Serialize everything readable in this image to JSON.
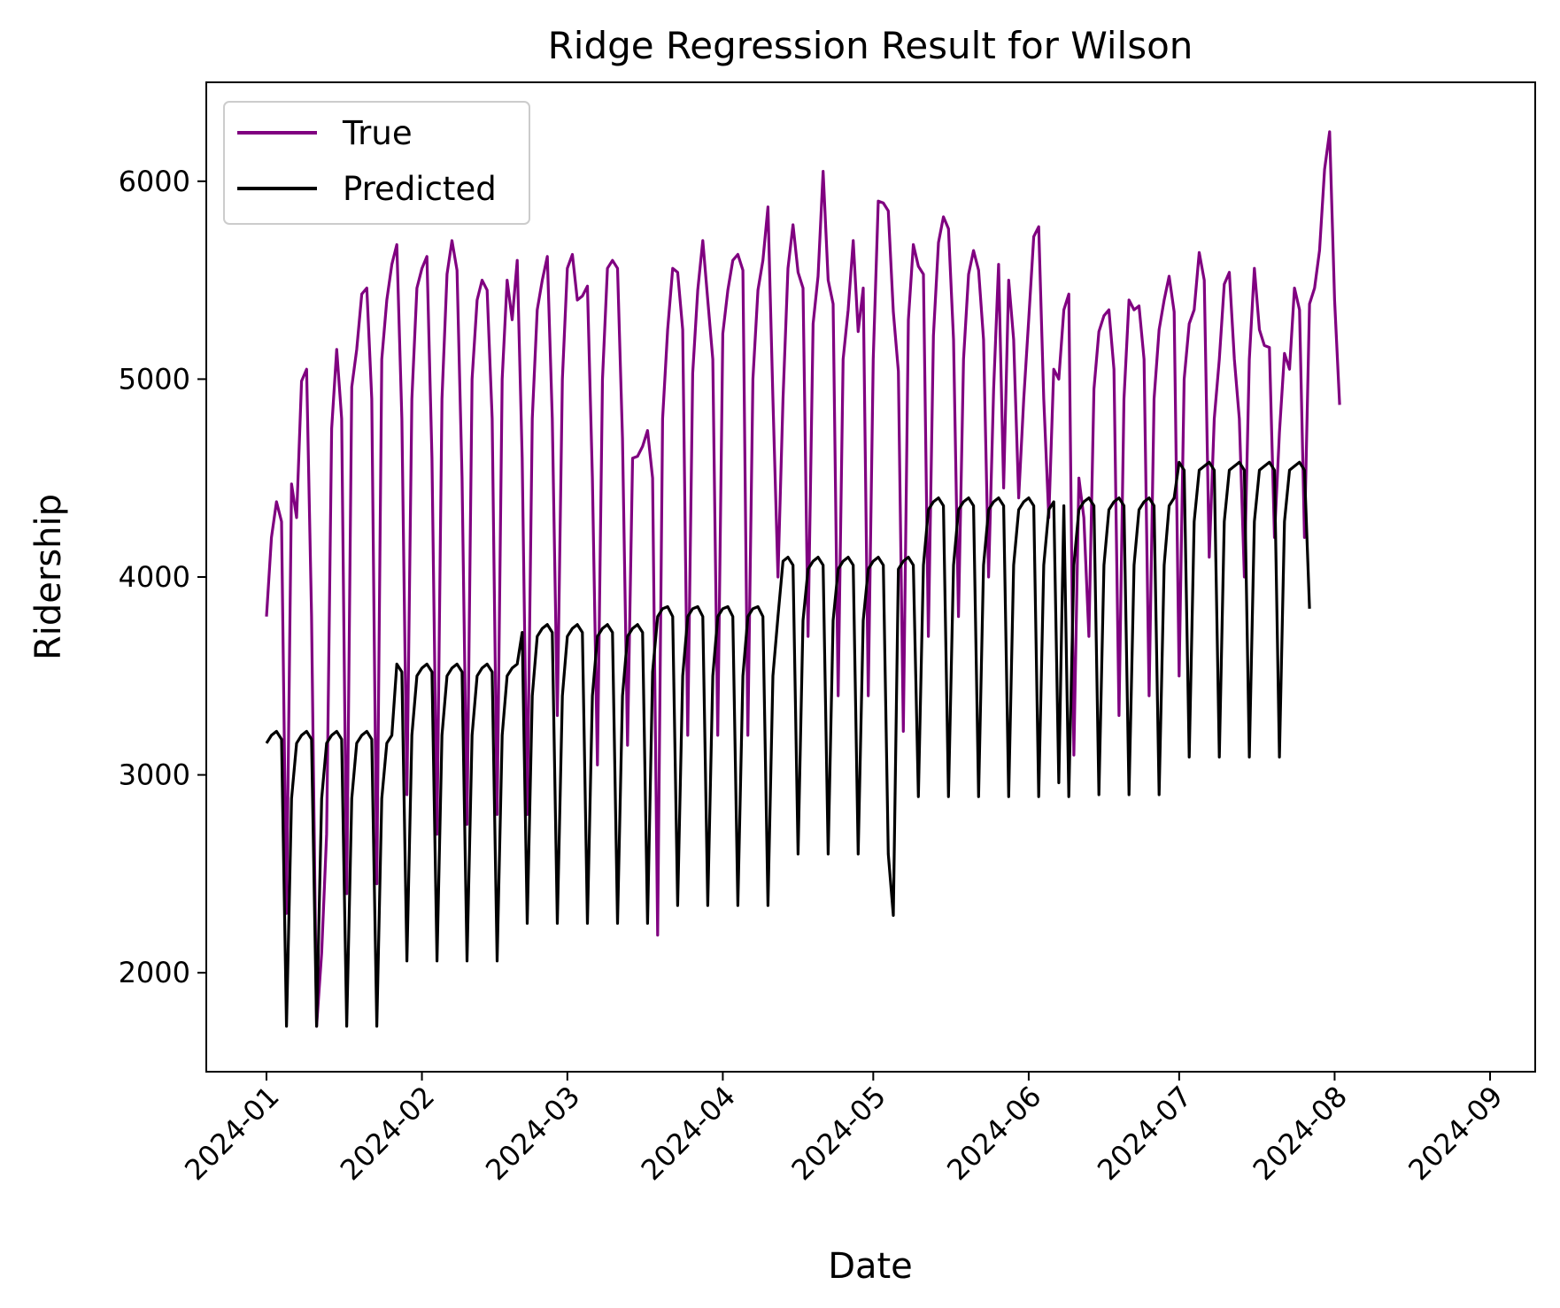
{
  "chart_data": {
    "type": "line",
    "title": "Ridge Regression Result for Wilson",
    "xlabel": "Date",
    "ylabel": "Ridership",
    "x_start": "2024-01-01",
    "x_end": "2024-08-31",
    "xlim": [
      "2023-12-20",
      "2024-09-10"
    ],
    "ylim": [
      1500,
      6500
    ],
    "yticks": [
      2000,
      3000,
      4000,
      5000,
      6000
    ],
    "xticks": [
      {
        "date": "2024-01-01",
        "label": "2024-01"
      },
      {
        "date": "2024-02-01",
        "label": "2024-02"
      },
      {
        "date": "2024-03-01",
        "label": "2024-03"
      },
      {
        "date": "2024-04-01",
        "label": "2024-04"
      },
      {
        "date": "2024-05-01",
        "label": "2024-05"
      },
      {
        "date": "2024-06-01",
        "label": "2024-06"
      },
      {
        "date": "2024-07-01",
        "label": "2024-07"
      },
      {
        "date": "2024-08-01",
        "label": "2024-08"
      },
      {
        "date": "2024-09-01",
        "label": "2024-09"
      }
    ],
    "grid": false,
    "legend_position": "top-left",
    "series": [
      {
        "name": "True",
        "color": "#800080",
        "values": [
          3800,
          4200,
          4380,
          4280,
          2300,
          4470,
          4300,
          4990,
          5050,
          3800,
          1730,
          2100,
          2700,
          4750,
          5150,
          4800,
          2400,
          4960,
          5150,
          5430,
          5460,
          4900,
          2450,
          5100,
          5400,
          5580,
          5680,
          4800,
          2900,
          4900,
          5460,
          5560,
          5620,
          4600,
          2700,
          4900,
          5530,
          5700,
          5550,
          4500,
          2750,
          5000,
          5400,
          5500,
          5450,
          4800,
          2800,
          5000,
          5500,
          5300,
          5600,
          4600,
          2800,
          4800,
          5350,
          5500,
          5620,
          4800,
          3300,
          5000,
          5560,
          5630,
          5400,
          5420,
          5470,
          4500,
          3050,
          5000,
          5560,
          5600,
          5560,
          4700,
          3150,
          4600,
          4610,
          4660,
          4740,
          4500,
          2190,
          4800,
          5250,
          5560,
          5540,
          5250,
          3200,
          5030,
          5450,
          5700,
          5400,
          5100,
          3200,
          5230,
          5450,
          5600,
          5630,
          5550,
          3200,
          5000,
          5450,
          5600,
          5870,
          4900,
          4000,
          4900,
          5560,
          5780,
          5540,
          5460,
          3700,
          5280,
          5520,
          6050,
          5500,
          5380,
          3400,
          5100,
          5350,
          5700,
          5240,
          5460,
          3400,
          5100,
          5900,
          5890,
          5850,
          5340,
          5040,
          3220,
          5300,
          5680,
          5570,
          5530,
          3700,
          5220,
          5690,
          5820,
          5760,
          5200,
          3800,
          5100,
          5530,
          5650,
          5550,
          5200,
          4000,
          4950,
          5580,
          4450,
          5500,
          5200,
          4400,
          4900,
          5300,
          5720,
          5770,
          4900,
          4300,
          5050,
          5000,
          5350,
          5430,
          3100,
          4500,
          4300,
          3700,
          4950,
          5240,
          5320,
          5350,
          5050,
          3300,
          4900,
          5400,
          5350,
          5370,
          5100,
          3400,
          4900,
          5250,
          5400,
          5520,
          5340,
          3500,
          5000,
          5280,
          5350,
          5640,
          5500,
          4100,
          4800,
          5100,
          5480,
          5540,
          5100,
          4800,
          4000,
          5100,
          5560,
          5250,
          5170,
          5160,
          4200,
          4730,
          5130,
          5050,
          5460,
          5350,
          4200,
          5380,
          5460,
          5650,
          6060,
          6250,
          5400,
          4870
        ]
      },
      {
        "name": "Predicted",
        "color": "#000000",
        "values": [
          3160,
          3200,
          3220,
          3180,
          1730,
          2880,
          3160,
          3200,
          3220,
          3180,
          1730,
          2880,
          3160,
          3200,
          3220,
          3180,
          1730,
          2880,
          3160,
          3200,
          3220,
          3180,
          1730,
          2880,
          3160,
          3200,
          3560,
          3520,
          2060,
          3200,
          3500,
          3540,
          3560,
          3520,
          2060,
          3200,
          3500,
          3540,
          3560,
          3520,
          2060,
          3200,
          3500,
          3540,
          3560,
          3520,
          2060,
          3200,
          3500,
          3540,
          3560,
          3720,
          2250,
          3400,
          3700,
          3740,
          3760,
          3720,
          2250,
          3400,
          3700,
          3740,
          3760,
          3720,
          2250,
          3400,
          3700,
          3740,
          3760,
          3720,
          2250,
          3400,
          3700,
          3740,
          3760,
          3720,
          2250,
          3520,
          3800,
          3840,
          3850,
          3800,
          2340,
          3500,
          3800,
          3840,
          3850,
          3800,
          2340,
          3500,
          3800,
          3840,
          3850,
          3800,
          2340,
          3500,
          3800,
          3840,
          3850,
          3800,
          2340,
          3500,
          3800,
          4080,
          4100,
          4060,
          2600,
          3780,
          4040,
          4080,
          4100,
          4060,
          2600,
          3780,
          4040,
          4080,
          4100,
          4060,
          2600,
          3780,
          4040,
          4080,
          4100,
          4060,
          2600,
          2290,
          4040,
          4080,
          4100,
          4060,
          2890,
          4060,
          4340,
          4380,
          4400,
          4360,
          2890,
          4060,
          4340,
          4380,
          4400,
          4360,
          2890,
          4060,
          4340,
          4380,
          4400,
          4360,
          2890,
          4060,
          4340,
          4380,
          4400,
          4360,
          2890,
          4060,
          4340,
          4380,
          2960,
          4360,
          2890,
          4060,
          4340,
          4380,
          4400,
          4360,
          2900,
          4060,
          4340,
          4380,
          4400,
          4360,
          2900,
          4060,
          4340,
          4380,
          4400,
          4360,
          2900,
          4060,
          4360,
          4400,
          4580,
          4540,
          3090,
          4280,
          4540,
          4560,
          4580,
          4540,
          3090,
          4280,
          4540,
          4560,
          4580,
          4540,
          3090,
          4280,
          4540,
          4560,
          4580,
          4540,
          3090,
          4280,
          4540,
          4560,
          4580,
          4540,
          3840
        ]
      }
    ]
  }
}
